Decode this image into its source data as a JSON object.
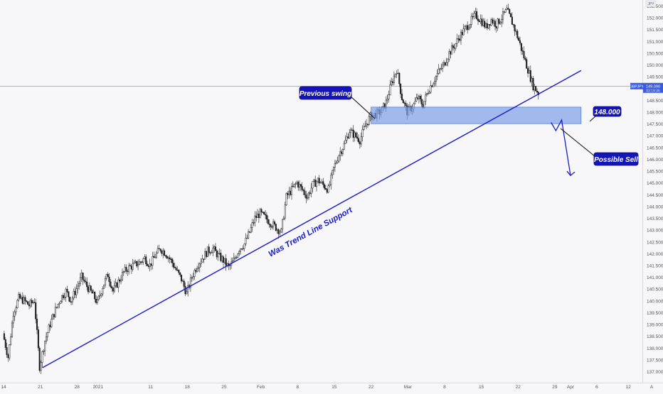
{
  "chart_data": {
    "type": "candlestick",
    "symbol": "GBPJPY",
    "price_badge": {
      "price": "149.090",
      "timer": "03:19:36",
      "value": 149.09
    },
    "currency_badge": "JPY",
    "y_ticks": [
      152.5,
      152.0,
      151.5,
      151.0,
      150.5,
      150.0,
      149.5,
      148.5,
      148.0,
      147.5,
      147.0,
      146.5,
      146.0,
      145.5,
      145.0,
      144.5,
      144.0,
      143.5,
      143.0,
      142.5,
      142.0,
      141.5,
      141.0,
      140.5,
      140.0,
      139.5,
      139.0,
      138.5,
      138.0,
      137.5,
      137.0
    ],
    "y_tick_labels": [
      "152.500",
      "152.000",
      "151.500",
      "151.000",
      "150.500",
      "150.000",
      "149.500",
      "148.500",
      "148.000",
      "147.500",
      "147.000",
      "146.500",
      "146.000",
      "145.500",
      "145.000",
      "144.500",
      "144.000",
      "143.500",
      "143.000",
      "142.500",
      "142.000",
      "141.500",
      "141.000",
      "140.500",
      "140.000",
      "139.500",
      "139.000",
      "138.500",
      "138.000",
      "137.500",
      "137.000"
    ],
    "ylim": [
      136.6,
      153.0
    ],
    "x_ticks": [
      {
        "label": "14",
        "day": 0
      },
      {
        "label": "21",
        "day": 7
      },
      {
        "label": "28",
        "day": 14
      },
      {
        "label": "2021",
        "day": 18
      },
      {
        "label": "11",
        "day": 28
      },
      {
        "label": "18",
        "day": 35
      },
      {
        "label": "25",
        "day": 42
      },
      {
        "label": "Feb",
        "day": 49
      },
      {
        "label": "8",
        "day": 56
      },
      {
        "label": "15",
        "day": 63
      },
      {
        "label": "22",
        "day": 70
      },
      {
        "label": "Mar",
        "day": 77
      },
      {
        "label": "8",
        "day": 84
      },
      {
        "label": "15",
        "day": 91
      },
      {
        "label": "22",
        "day": 98
      },
      {
        "label": "29",
        "day": 105
      },
      {
        "label": "Apr",
        "day": 108
      },
      {
        "label": "6",
        "day": 113
      },
      {
        "label": "12",
        "day": 119
      }
    ],
    "x_end_icon": "A",
    "anchor_points": [
      [
        0,
        138.6
      ],
      [
        1,
        137.6
      ],
      [
        2,
        139.5
      ],
      [
        3,
        140.1
      ],
      [
        4,
        140.0
      ],
      [
        5,
        139.8
      ],
      [
        6,
        140.0
      ],
      [
        7,
        137.2
      ],
      [
        8,
        138.3
      ],
      [
        9,
        139.0
      ],
      [
        10,
        139.6
      ],
      [
        11,
        140.1
      ],
      [
        12,
        140.4
      ],
      [
        13,
        140.0
      ],
      [
        14,
        140.5
      ],
      [
        15,
        141.0
      ],
      [
        16,
        140.6
      ],
      [
        17,
        140.3
      ],
      [
        18,
        139.9
      ],
      [
        19,
        140.6
      ],
      [
        20,
        141.1
      ],
      [
        21,
        140.4
      ],
      [
        22,
        140.8
      ],
      [
        23,
        141.2
      ],
      [
        24,
        141.4
      ],
      [
        25,
        141.5
      ],
      [
        26,
        141.6
      ],
      [
        27,
        141.8
      ],
      [
        28,
        141.5
      ],
      [
        29,
        141.9
      ],
      [
        30,
        142.2
      ],
      [
        31,
        142.0
      ],
      [
        32,
        141.7
      ],
      [
        33,
        141.3
      ],
      [
        34,
        140.9
      ],
      [
        35,
        140.3
      ],
      [
        36,
        141.0
      ],
      [
        37,
        141.5
      ],
      [
        38,
        141.8
      ],
      [
        39,
        142.1
      ],
      [
        40,
        142.2
      ],
      [
        41,
        141.9
      ],
      [
        42,
        141.7
      ],
      [
        43,
        141.4
      ],
      [
        44,
        141.7
      ],
      [
        45,
        142.2
      ],
      [
        46,
        142.4
      ],
      [
        47,
        142.9
      ],
      [
        48,
        143.5
      ],
      [
        49,
        143.7
      ],
      [
        50,
        143.5
      ],
      [
        51,
        143.3
      ],
      [
        52,
        143.1
      ],
      [
        53,
        142.9
      ],
      [
        54,
        144.4
      ],
      [
        55,
        144.7
      ],
      [
        56,
        145.0
      ],
      [
        57,
        144.7
      ],
      [
        58,
        144.4
      ],
      [
        59,
        144.9
      ],
      [
        60,
        145.1
      ],
      [
        61,
        144.9
      ],
      [
        62,
        144.7
      ],
      [
        63,
        145.6
      ],
      [
        64,
        146.2
      ],
      [
        65,
        146.6
      ],
      [
        66,
        147.2
      ],
      [
        67,
        147.0
      ],
      [
        68,
        146.8
      ],
      [
        69,
        147.4
      ],
      [
        70,
        147.8
      ],
      [
        71,
        147.9
      ],
      [
        72,
        148.0
      ],
      [
        73,
        148.4
      ],
      [
        74,
        149.2
      ],
      [
        75,
        149.8
      ],
      [
        76,
        148.6
      ],
      [
        77,
        148.0
      ],
      [
        78,
        148.2
      ],
      [
        79,
        148.6
      ],
      [
        80,
        148.3
      ],
      [
        81,
        148.9
      ],
      [
        82,
        149.3
      ],
      [
        83,
        149.7
      ],
      [
        84,
        150.0
      ],
      [
        85,
        150.5
      ],
      [
        86,
        150.8
      ],
      [
        87,
        151.2
      ],
      [
        88,
        151.5
      ],
      [
        89,
        151.8
      ],
      [
        90,
        152.1
      ],
      [
        91,
        151.9
      ],
      [
        92,
        151.6
      ],
      [
        93,
        151.9
      ],
      [
        94,
        151.7
      ],
      [
        95,
        152.0
      ],
      [
        96,
        152.3
      ],
      [
        97,
        151.8
      ],
      [
        98,
        151.2
      ],
      [
        99,
        150.5
      ],
      [
        100,
        149.8
      ],
      [
        101,
        149.1
      ],
      [
        102,
        148.8
      ]
    ],
    "trendline": {
      "start": [
        7.4,
        137.15
      ],
      "end": [
        110,
        149.75
      ]
    },
    "zone": {
      "day_start": 70,
      "day_end": 110,
      "top": 148.2,
      "bottom": 147.5
    },
    "forecast_path": [
      [
        104.3,
        147.55
      ],
      [
        105.2,
        147.2
      ],
      [
        106.3,
        147.65
      ],
      [
        108.0,
        145.3
      ]
    ],
    "labels": {
      "swing": "Previous swing",
      "sell": "Possible Sell",
      "trend": "Was Trend Line Support",
      "level": "148.000"
    },
    "colors": {
      "up": "#222222",
      "down": "#222222",
      "trend": "#1a1acc",
      "zone_fill": "#7c9ee8",
      "callout": "#1414b8",
      "axis_text": "#555555",
      "price_line": "#3b5bdb"
    }
  }
}
